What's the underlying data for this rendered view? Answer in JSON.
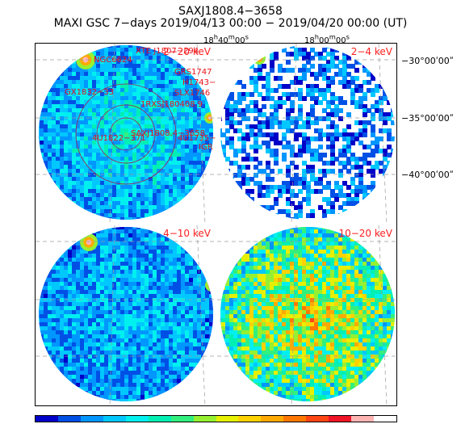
{
  "title": "SAXJ1808.4−3658",
  "subtitle": "MAXI GSC 7−days 2019/04/13 00:00 − 2019/04/20 00:00 (UT)",
  "ra_labels": [
    "18h40m00s",
    "18h00m00s"
  ],
  "dec_labels": [
    "−30°00ʹ00ʺ",
    "−35°00ʹ00ʺ",
    "−40°00ʹ00ʺ"
  ],
  "ra_html": [
    "18<sup>h</sup>40<sup>m</sup>00<sup>s</sup>",
    "18<sup>h</sup>00<sup>m</sup>00<sup>s</sup>"
  ],
  "bands": [
    "2−20 keV",
    "2−4 keV",
    "4−10 keV",
    "10−20 keV"
  ],
  "sources": [
    "XTE J1807−294",
    "NGC6624",
    "GRS1747",
    "H1743−",
    "SLX1746",
    "1RXSJ180408.9",
    "GX1832−33",
    "SAXJ1808.4−3658",
    "4U1822−371",
    "4U1735−44",
    "IGR"
  ],
  "colorbar": [
    "#0000c8",
    "#0050e6",
    "#0096ff",
    "#00c8ff",
    "#00f0f0",
    "#00f0b4",
    "#32f07d",
    "#96f032",
    "#e6f000",
    "#ffd200",
    "#ffaa00",
    "#ff7800",
    "#ff4614",
    "#f01428",
    "#ffb4b4",
    "#ffffff"
  ]
}
